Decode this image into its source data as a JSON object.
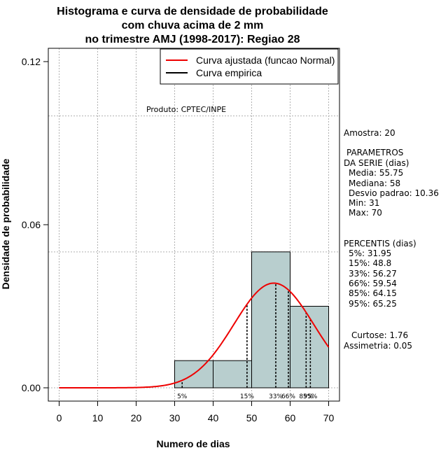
{
  "chart_data": {
    "type": "bar",
    "title_lines": [
      "Histograma e curva de densidade de probabilidade",
      "com chuva acima de 2 mm",
      "no trimestre AMJ (1998-2017): Regiao 28"
    ],
    "xlabel": "Numero de dias",
    "ylabel": "Densidade de probabilidade",
    "xlim": [
      0,
      70
    ],
    "ylim": [
      0,
      0.12
    ],
    "x_ticks": [
      0,
      10,
      20,
      30,
      40,
      50,
      60,
      70
    ],
    "y_ticks": [
      0.0,
      0.06,
      0.12
    ],
    "y_tick_labels": [
      "0.00",
      "0.06",
      "0.12"
    ],
    "grid": true,
    "grid_y": [
      0.0,
      0.05,
      0.1
    ],
    "bins": [
      {
        "start": 30,
        "end": 40,
        "density": 0.01
      },
      {
        "start": 40,
        "end": 50,
        "density": 0.01
      },
      {
        "start": 50,
        "end": 60,
        "density": 0.05
      },
      {
        "start": 60,
        "end": 70,
        "density": 0.03
      }
    ],
    "bar_color": "#b8cece",
    "curve_color": "#ee0000",
    "normal_fit": {
      "mean": 55.75,
      "sd": 10.36,
      "x_from": 0,
      "x_to": 70
    },
    "legend": {
      "position": "top-right",
      "entries": [
        {
          "label": "Curva ajustada (funcao Normal)",
          "color": "#ee0000"
        },
        {
          "label": "Curva empirica",
          "color": "#000000"
        }
      ]
    },
    "product_label": "Produto: CPTEC/INPE",
    "percentiles": [
      {
        "label": "5%",
        "value": 31.95
      },
      {
        "label": "15%",
        "value": 48.8
      },
      {
        "label": "33%",
        "value": 56.27
      },
      {
        "label": "66%",
        "value": 59.54
      },
      {
        "label": "85%",
        "value": 64.15
      },
      {
        "label": "95%",
        "value": 65.25
      }
    ]
  },
  "side_panel": {
    "sample": "Amostra: 20",
    "params_title_1": "PARAMETROS",
    "params_title_2": "DA SERIE (dias)",
    "params": [
      "Media: 55.75",
      "Mediana: 58",
      "Desvio padrao: 10.36",
      "Min: 31",
      "Max: 70"
    ],
    "percentis_title": "PERCENTIS (dias)",
    "percentis": [
      "5%: 31.95",
      "15%: 48.8",
      "33%: 56.27",
      "66%: 59.54",
      "85%: 64.15",
      "95%: 65.25"
    ],
    "curtose": "Curtose: 1.76",
    "assimetria": "Assimetria: 0.05"
  }
}
